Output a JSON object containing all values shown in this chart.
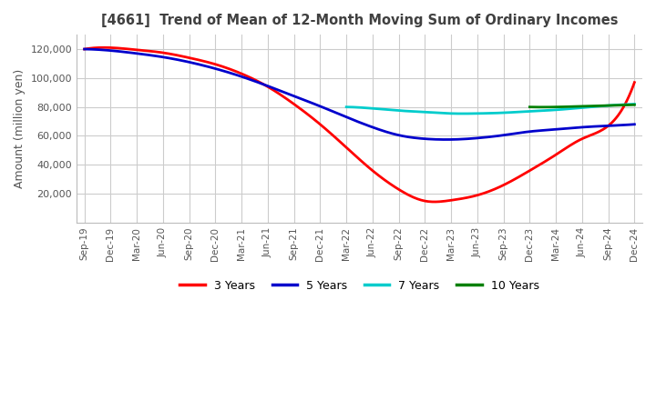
{
  "title": "[4661]  Trend of Mean of 12-Month Moving Sum of Ordinary Incomes",
  "ylabel": "Amount (million yen)",
  "ylim": [
    0,
    130000
  ],
  "yticks": [
    20000,
    40000,
    60000,
    80000,
    100000,
    120000
  ],
  "background_color": "#ffffff",
  "grid_color": "#cccccc",
  "title_color": "#404040",
  "x_labels": [
    "Sep-19",
    "Dec-19",
    "Mar-20",
    "Jun-20",
    "Sep-20",
    "Dec-20",
    "Mar-21",
    "Jun-21",
    "Sep-21",
    "Dec-21",
    "Mar-22",
    "Jun-22",
    "Sep-22",
    "Dec-22",
    "Mar-23",
    "Jun-23",
    "Sep-23",
    "Dec-23",
    "Mar-24",
    "Jun-24",
    "Sep-24",
    "Dec-24"
  ],
  "lines": {
    "3 Years": {
      "color": "#ff0000",
      "points": [
        [
          0,
          120000
        ],
        [
          1,
          121000
        ],
        [
          2,
          119500
        ],
        [
          3,
          117500
        ],
        [
          4,
          114000
        ],
        [
          5,
          109500
        ],
        [
          6,
          103000
        ],
        [
          7,
          94000
        ],
        [
          8,
          82000
        ],
        [
          9,
          68000
        ],
        [
          10,
          52000
        ],
        [
          11,
          36000
        ],
        [
          12,
          23000
        ],
        [
          13,
          15000
        ],
        [
          14,
          15500
        ],
        [
          15,
          19000
        ],
        [
          16,
          26000
        ],
        [
          17,
          36000
        ],
        [
          18,
          47000
        ],
        [
          19,
          58000
        ],
        [
          20,
          67000
        ],
        [
          21,
          97000
        ]
      ]
    },
    "5 Years": {
      "color": "#0000cc",
      "points": [
        [
          0,
          120000
        ],
        [
          1,
          119000
        ],
        [
          2,
          117000
        ],
        [
          3,
          114500
        ],
        [
          4,
          111000
        ],
        [
          5,
          106500
        ],
        [
          6,
          101000
        ],
        [
          7,
          94500
        ],
        [
          8,
          87500
        ],
        [
          9,
          80500
        ],
        [
          10,
          73000
        ],
        [
          11,
          66000
        ],
        [
          12,
          60500
        ],
        [
          13,
          58000
        ],
        [
          14,
          57500
        ],
        [
          15,
          58500
        ],
        [
          16,
          60500
        ],
        [
          17,
          63000
        ],
        [
          18,
          64500
        ],
        [
          19,
          66000
        ],
        [
          20,
          67000
        ],
        [
          21,
          68000
        ]
      ]
    },
    "7 Years": {
      "color": "#00cccc",
      "points": [
        [
          10,
          80000
        ],
        [
          11,
          79000
        ],
        [
          12,
          77500
        ],
        [
          13,
          76500
        ],
        [
          14,
          75500
        ],
        [
          15,
          75500
        ],
        [
          16,
          76000
        ],
        [
          17,
          77000
        ],
        [
          18,
          78000
        ],
        [
          19,
          79500
        ],
        [
          20,
          81000
        ],
        [
          21,
          82000
        ]
      ]
    },
    "10 Years": {
      "color": "#008000",
      "points": [
        [
          17,
          80000
        ],
        [
          18,
          80000
        ],
        [
          19,
          80500
        ],
        [
          20,
          81000
        ],
        [
          21,
          81500
        ]
      ]
    }
  },
  "legend_labels": [
    "3 Years",
    "5 Years",
    "7 Years",
    "10 Years"
  ],
  "legend_colors": [
    "#ff0000",
    "#0000cc",
    "#00cccc",
    "#008000"
  ]
}
